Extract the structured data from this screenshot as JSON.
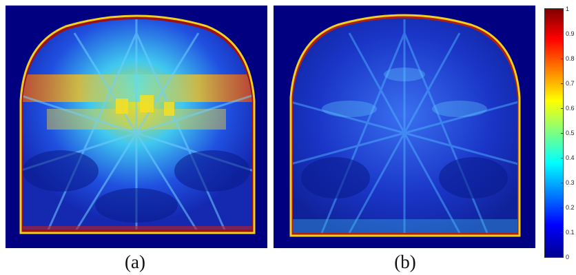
{
  "captions": {
    "a": "(a)",
    "b": "(b)"
  },
  "colorbar": {
    "min": 0,
    "max": 1,
    "tick_labels": [
      "1",
      "0.9",
      "0.8",
      "0.7",
      "0.6",
      "0.5",
      "0.4",
      "0.3",
      "0.2",
      "0.1",
      "0"
    ],
    "colors": {
      "low": "#00008f",
      "blue": "#0000ff",
      "cyan": "#00ffff",
      "yellow": "#ffff00",
      "red": "#ff0000",
      "high": "#800000"
    }
  },
  "panels": {
    "a": {
      "background": "#000080",
      "base_fill": "#1a36c8",
      "hotspot": "#f0e020",
      "rim": "#b01010"
    },
    "b": {
      "background": "#000080",
      "base_fill": "#1428b0",
      "hotspot": "#40a0ff",
      "rim": "#b01010"
    }
  }
}
